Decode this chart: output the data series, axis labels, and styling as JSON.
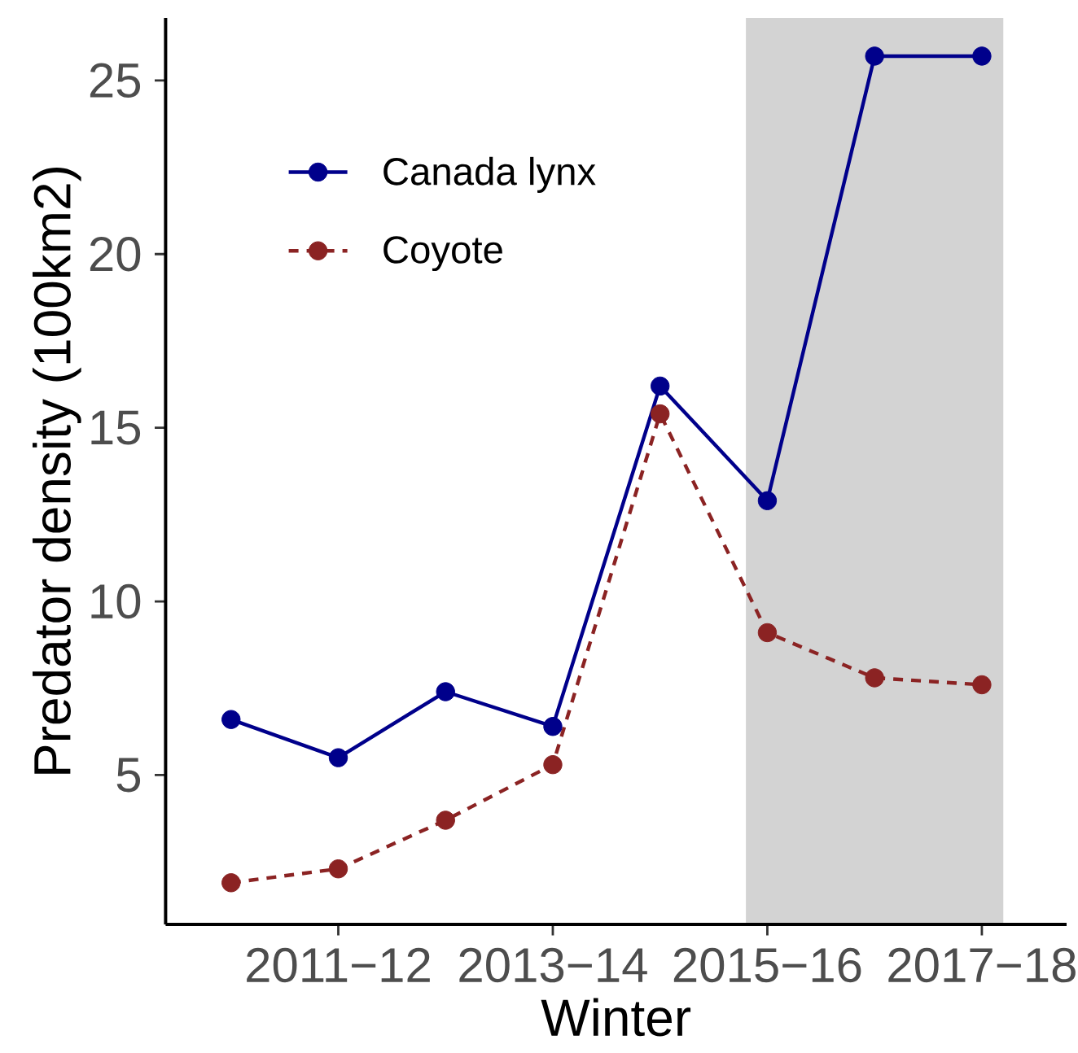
{
  "chart_data": {
    "type": "line",
    "xlabel": "Winter",
    "ylabel": "Predator density (100km2)",
    "categories": [
      null,
      "2011−12",
      null,
      "2013−14",
      null,
      "2015−16",
      null,
      "2017−18"
    ],
    "series": [
      {
        "name": "Canada lynx",
        "color": "#00008b",
        "line_style": "solid",
        "values": [
          6.6,
          5.5,
          7.4,
          6.4,
          16.2,
          12.9,
          25.7,
          25.7
        ]
      },
      {
        "name": "Coyote",
        "color": "#8b2323",
        "line_style": "dashed",
        "values": [
          1.9,
          2.3,
          3.7,
          5.3,
          15.4,
          9.1,
          7.8,
          7.6
        ]
      }
    ],
    "ylim": [
      0.7,
      26.8
    ],
    "yticks": [
      5,
      10,
      15,
      20,
      25
    ],
    "bands": [
      {
        "axis": "x",
        "from": "2015−16",
        "to": "2017−18",
        "color": "#d3d3d3"
      }
    ],
    "grid": false,
    "legend": "top left",
    "marker": "circle"
  }
}
